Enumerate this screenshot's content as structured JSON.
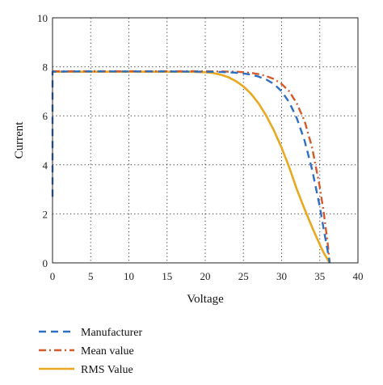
{
  "chart_data": {
    "type": "line",
    "title": "",
    "xlabel": "Voltage",
    "ylabel": "Current",
    "xlim": [
      0,
      40
    ],
    "ylim": [
      0,
      10
    ],
    "xticks": [
      0,
      5,
      10,
      15,
      20,
      25,
      30,
      35,
      40
    ],
    "yticks": [
      0,
      2,
      4,
      6,
      8,
      10
    ],
    "grid": true,
    "legend_position": "below",
    "series": [
      {
        "name": "Manufacturer",
        "color": "#2e6fc4",
        "style": "dashed",
        "x": [
          0,
          0,
          2,
          5,
          10,
          15,
          20,
          22,
          24,
          25,
          26,
          27,
          28,
          29,
          30,
          31,
          32,
          33,
          34,
          35,
          35.5,
          36,
          36.3
        ],
        "y": [
          2.7,
          7.8,
          7.81,
          7.81,
          7.81,
          7.81,
          7.8,
          7.79,
          7.76,
          7.73,
          7.68,
          7.6,
          7.48,
          7.3,
          7.0,
          6.55,
          5.9,
          5.0,
          3.8,
          2.3,
          1.4,
          0.55,
          0
        ]
      },
      {
        "name": "Mean value",
        "color": "#d45a2a",
        "style": "dashdot",
        "x": [
          0,
          2,
          5,
          10,
          15,
          20,
          22,
          24,
          25,
          26,
          27,
          28,
          29,
          30,
          31,
          32,
          33,
          34,
          35,
          35.5,
          36,
          36.3
        ],
        "y": [
          7.82,
          7.82,
          7.82,
          7.82,
          7.82,
          7.82,
          7.81,
          7.8,
          7.78,
          7.75,
          7.7,
          7.62,
          7.5,
          7.3,
          7.0,
          6.5,
          5.8,
          4.7,
          3.1,
          2.1,
          0.9,
          0
        ]
      },
      {
        "name": "RMS Value",
        "color": "#e8a820",
        "style": "solid",
        "x": [
          0,
          2,
          5,
          10,
          15,
          18,
          20,
          21,
          22,
          23,
          24,
          25,
          26,
          27,
          28,
          29,
          30,
          31,
          32,
          33,
          34,
          35,
          35.5,
          36,
          36.3
        ],
        "y": [
          7.8,
          7.8,
          7.8,
          7.8,
          7.8,
          7.8,
          7.78,
          7.75,
          7.68,
          7.58,
          7.42,
          7.2,
          6.9,
          6.5,
          6.0,
          5.4,
          4.7,
          3.9,
          3.0,
          2.2,
          1.45,
          0.75,
          0.42,
          0.15,
          0
        ]
      }
    ]
  }
}
